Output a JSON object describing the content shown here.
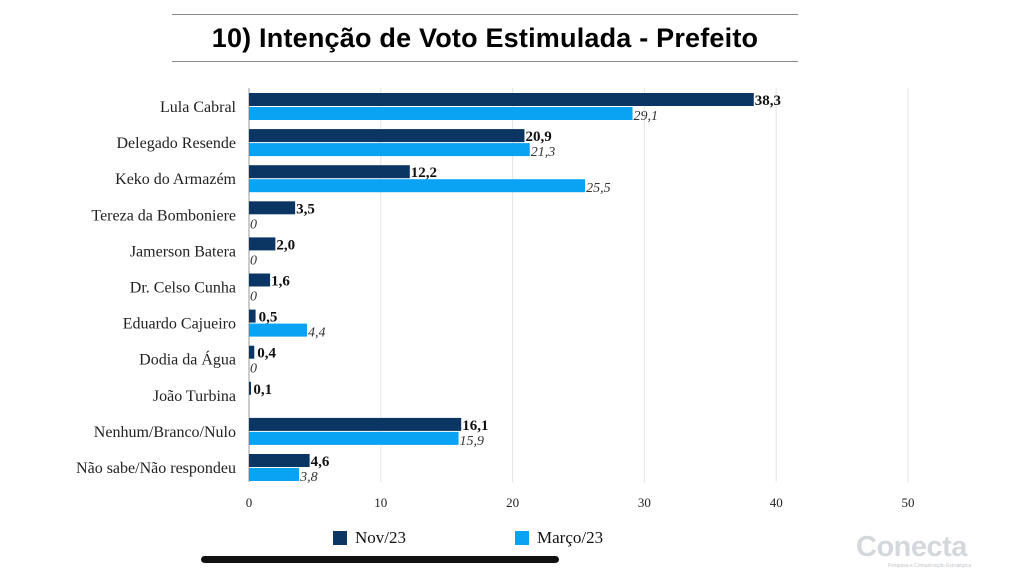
{
  "title": "10) Intenção de Voto Estimulada - Prefeito",
  "chart_data": {
    "type": "bar",
    "orientation": "horizontal",
    "title": "10) Intenção de Voto Estimulada - Prefeito",
    "categories": [
      "Lula Cabral",
      "Delegado Resende",
      "Keko do Armazém",
      "Tereza da Bomboniere",
      "Jamerson Batera",
      "Dr. Celso Cunha",
      "Eduardo Cajueiro",
      "Dodia da Água",
      "João Turbina",
      "Nenhum/Branco/Nulo",
      "Não sabe/Não respondeu"
    ],
    "series": [
      {
        "name": "Nov/23",
        "color": "#0b3563",
        "values": [
          38.3,
          20.9,
          12.2,
          3.5,
          2.0,
          1.6,
          0.5,
          0.4,
          0.1,
          16.1,
          4.6
        ],
        "labels": [
          "38,3",
          "20,9",
          "12,2",
          "3,5",
          "2,0",
          "1,6",
          "0,5",
          "0,4",
          "0,1",
          "16,1",
          "4,6"
        ]
      },
      {
        "name": "Março/23",
        "color": "#0aa2f2",
        "values": [
          29.1,
          21.3,
          25.5,
          0,
          0,
          0,
          4.4,
          0,
          null,
          15.9,
          3.8
        ],
        "labels": [
          "29,1",
          "21,3",
          "25,5",
          "0",
          "0",
          "0",
          "4,4",
          "0",
          null,
          "15,9",
          "3,8"
        ]
      }
    ],
    "x_ticks": [
      "0",
      "10",
      "20",
      "30",
      "40",
      "50"
    ],
    "xlim": [
      0,
      50
    ],
    "grid": true,
    "legend_position": "bottom"
  },
  "legend": {
    "items": [
      {
        "label": "Nov/23",
        "color": "#0b3563"
      },
      {
        "label": "Março/23",
        "color": "#0aa2f2"
      }
    ]
  },
  "logo": {
    "name": "Conecta",
    "tagline": "Pesquisa e Comunicação Estratégica"
  }
}
